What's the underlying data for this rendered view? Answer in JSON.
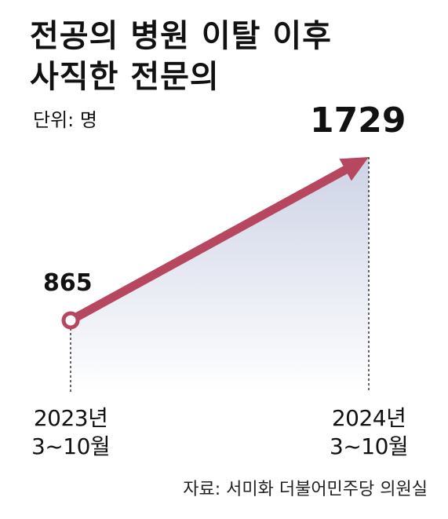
{
  "title_lines": [
    "전공의 병원 이탈 이후",
    "사직한 전문의"
  ],
  "unit_label": "단위: 명",
  "source": "자료: 서미화 더불어민주당 의원실",
  "colors": {
    "arrow": "#b6475e",
    "fill_top": "#cdd3e6",
    "fill_bottom": "#ffffff",
    "text": "#111111"
  },
  "chart_data": {
    "type": "area",
    "title": "전공의 병원 이탈 이후 사직한 전문의",
    "unit": "명",
    "categories": [
      {
        "year": "2023년",
        "period": "3~10월"
      },
      {
        "year": "2024년",
        "period": "3~10월"
      }
    ],
    "values": [
      865,
      1729
    ],
    "data_labels": [
      "865",
      "1729"
    ],
    "source": "자료: 서미화 더불어민주당 의원실"
  }
}
